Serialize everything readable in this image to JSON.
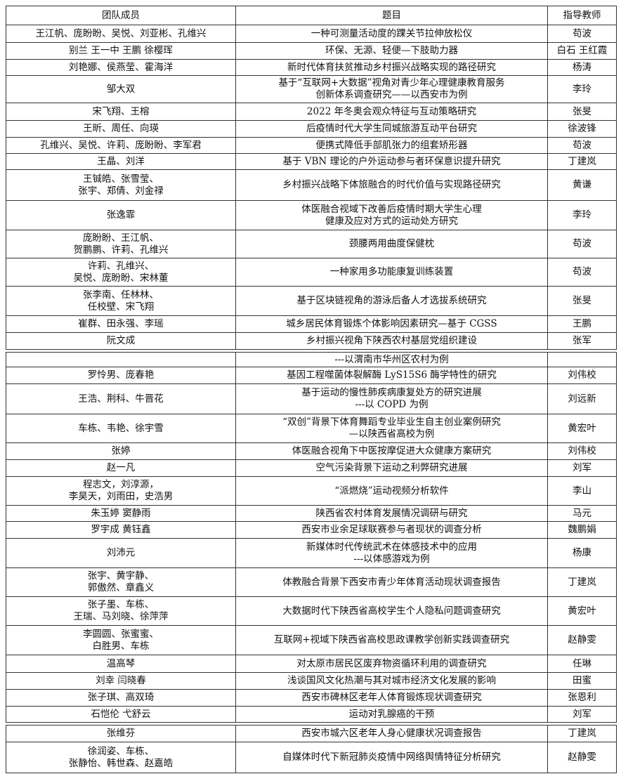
{
  "table": {
    "header": [
      "团队成员",
      "题目",
      "指导教师"
    ],
    "sections": [
      {
        "rows": [
          {
            "members": "王江帆、庞盼盼、吴悦、刘亚彬、孔维兴",
            "title": "一种可测量活动度的踝关节拉伸放松仪",
            "advisor": "苟波"
          },
          {
            "members": "别兰 王一中 王鹏 徐樱珲",
            "title": "环保、无源、轻便—下肢助力器",
            "advisor": "白石 王红霞"
          },
          {
            "members": "刘艳娜、侯燕莹、霍海洋",
            "title": "新时代体育扶贫推动乡村振兴战略实现的路径研究",
            "advisor": "杨涛"
          },
          {
            "members": "邹大双",
            "title": "基于“互联网+大数据”视角对青少年心理健康教育服务\n创新体系调查研究——以西安市为例",
            "advisor": "李玲"
          },
          {
            "members": "宋飞翔、王榕",
            "title": "2022 年冬奥会观众特征与互动策略研究",
            "advisor": "张旻"
          },
          {
            "members": "王昕、周任、向瑛",
            "title": "后疫情时代大学生同城旅游互动平台研究",
            "advisor": "徐波锋"
          },
          {
            "members": "孔维兴、吴悦、许莉、庞盼盼、李军君",
            "title": "便携式降低手部肌张力的组套矫形器",
            "advisor": "苟波"
          },
          {
            "members": "王晶、刘洋",
            "title": "基于 VBN 理论的户外运动参与者环保意识提升研究",
            "advisor": "丁建岚"
          },
          {
            "members": "王铖皓、张雪莹、\n张宇、郑倩、刘金禄",
            "title": "乡村振兴战略下体旅融合的时代价值与实现路径研究",
            "advisor": "黄谦"
          },
          {
            "members": "张逸霏",
            "title": "体医融合视域下改善后疫情时期大学生心理\n健康及应对方式的运动处方研究",
            "advisor": "李玲"
          },
          {
            "members": "庞盼盼、王江帆、\n贺鹏鹏、许莉、孔维兴",
            "title": "颈腰两用曲度保健枕",
            "advisor": "苟波"
          },
          {
            "members": "许莉、孔维兴、\n吴悦、庞盼盼、宋林董",
            "title": "一种家用多功能康复训练装置",
            "advisor": "苟波"
          },
          {
            "members": "张李南、任林林、\n任校壁、宋飞翔",
            "title": "基于区块链视角的游泳后备人才选拔系统研究",
            "advisor": "张旻"
          },
          {
            "members": "崔群、田永强、李瑶",
            "title": "城乡居民体育锻炼个体影响因素研究—基于 CGSS",
            "advisor": "王鹏"
          },
          {
            "members": "阮文成",
            "title": "乡村振兴视角下陕西农村基层党组织建设",
            "advisor": "张军"
          }
        ]
      },
      {
        "rows": [
          {
            "title": "---以渭南市华州区农村为例"
          },
          {
            "members": "罗怜男、庞春艳",
            "title": "基因工程噬菌体裂解酶 LyS15S6 酶学特性的研究",
            "advisor": "刘伟校"
          },
          {
            "members": "王浩、荆科、牛晋花",
            "title": "基于运动的慢性肺疾病康复处方的研究进展\n---以 COPD 为例",
            "advisor": "刘远新"
          },
          {
            "members": "车栋、韦艳、徐宇雪",
            "title": "“双创”背景下体育舞蹈专业毕业生自主创业案例研究\n—以陕西省高校为例",
            "advisor": "黄宏叶"
          },
          {
            "members": "张婷",
            "title": "体医融合视角下中医按摩促进大众健康方案研究",
            "advisor": "刘伟校"
          },
          {
            "members": "赵一凡",
            "title": "空气污染背景下运动之利弊研究进展",
            "advisor": "刘军"
          },
          {
            "members": "程志文，刘淳源，\n李昊天，刘雨田，史浩男",
            "title": "“派燃烧”运动视频分析软件",
            "advisor": "李山"
          },
          {
            "members": "朱玉婷 窦静雨",
            "title": "陕西省农村体育发展情况调研与研究",
            "advisor": "马元"
          },
          {
            "members": "罗宇成 黄钰鑫",
            "title": "西安市业余足球联赛参与者现状的调查分析",
            "advisor": "魏鹏娟"
          },
          {
            "members": "刘沛元",
            "title": "新媒体时代传统武术在体感技术中的应用\n---以体感游戏为例",
            "advisor": "杨康"
          },
          {
            "members": "张宇、黄宇静、\n郭傲然、章鑫义",
            "title": "体教融合背景下西安市青少年体育活动现状调查报告",
            "advisor": "丁建岚"
          },
          {
            "members": "张子墨、车栋、\n王瑞、马刘晓、徐萍萍",
            "title": "大数据时代下陕西省高校学生个人隐私问题调查研究",
            "advisor": "黄宏叶"
          },
          {
            "members": "李圆圆、张蜜蜜、\n白胜男、车栋",
            "title": "互联网+视域下陕西省高校思政课教学创新实践调查研究",
            "advisor": "赵静雯"
          },
          {
            "members": "温高琴",
            "title": "对太原市居民区废弃物资循环利用的调查研究",
            "advisor": "任琳"
          },
          {
            "members": "刘幸 闫晓春",
            "title": "浅谈国风文化热潮与其对城市经济文化发展的影响",
            "advisor": "田蜜"
          },
          {
            "members": "张子琪、高双琦",
            "title": "西安市碑林区老年人体育锻炼现状调查研究",
            "advisor": "张恩利"
          },
          {
            "members": "石恺伦 弋舒云",
            "title": "运动对乳腺癌的干预",
            "advisor": "刘军"
          }
        ]
      },
      {
        "rows": [
          {
            "members": "张维芬",
            "title": "西安市城六区老年人身心健康状况调查报告",
            "advisor": "丁建岚"
          },
          {
            "members": "徐润姿、车栋、\n张静怡、韩世森、赵嘉皓",
            "title": "自媒体时代下新冠肺炎疫情中网络舆情特征分析研究",
            "advisor": "赵静雯"
          }
        ]
      }
    ]
  }
}
